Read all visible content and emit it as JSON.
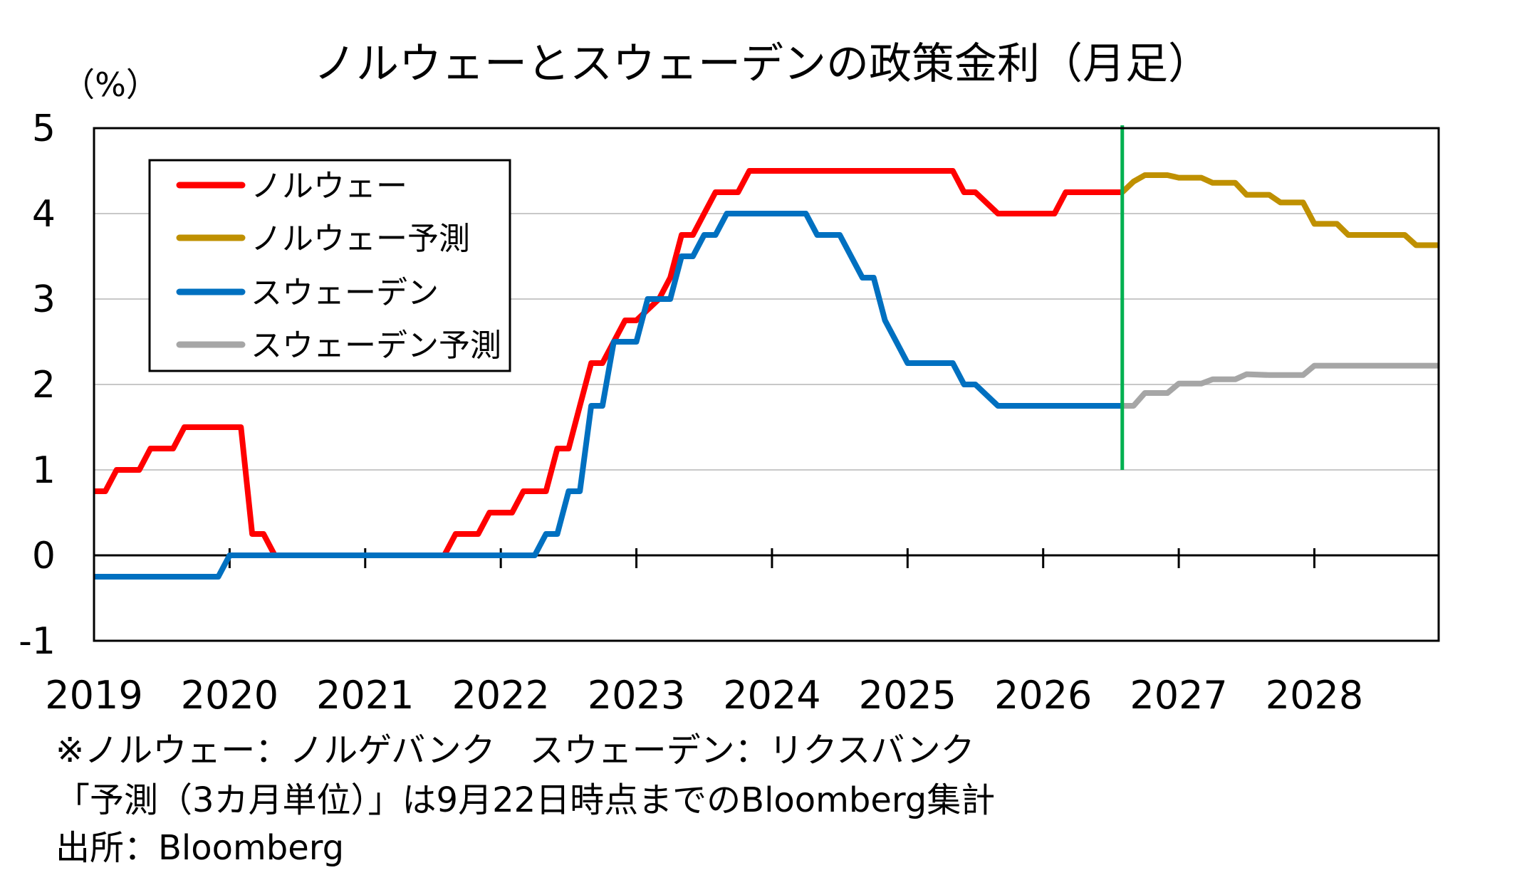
{
  "chart_data": {
    "type": "line",
    "title": "ノルウェーとスウェーデンの政策金利（月足）",
    "unit_label": "（%）",
    "ylim": [
      -1,
      5
    ],
    "yticks": [
      "5",
      "4",
      "3",
      "2",
      "1",
      "0",
      "-1"
    ],
    "x_start": "2019-01",
    "x_end": "2028-12",
    "xticks": [
      "2019",
      "2020",
      "2021",
      "2022",
      "2023",
      "2024",
      "2025",
      "2026",
      "2027",
      "2028"
    ],
    "grid": true,
    "legend_position": "top-left",
    "forecast_start": "2026-08",
    "colors": {
      "norway": "#ff0000",
      "norway_forecast": "#bf9000",
      "sweden": "#0070c0",
      "sweden_forecast": "#a6a6a6",
      "divider": "#00b050"
    },
    "series": [
      {
        "name": "ノルウェー",
        "points": [
          [
            "2019-01",
            0.75
          ],
          [
            "2019-02",
            0.75
          ],
          [
            "2019-03",
            1.0
          ],
          [
            "2019-05",
            1.0
          ],
          [
            "2019-06",
            1.25
          ],
          [
            "2019-08",
            1.25
          ],
          [
            "2019-09",
            1.5
          ],
          [
            "2020-02",
            1.5
          ],
          [
            "2020-03",
            0.25
          ],
          [
            "2020-04",
            0.25
          ],
          [
            "2020-05",
            0.0
          ],
          [
            "2021-08",
            0.0
          ],
          [
            "2021-09",
            0.25
          ],
          [
            "2021-11",
            0.25
          ],
          [
            "2021-12",
            0.5
          ],
          [
            "2022-02",
            0.5
          ],
          [
            "2022-03",
            0.75
          ],
          [
            "2022-05",
            0.75
          ],
          [
            "2022-06",
            1.25
          ],
          [
            "2022-07",
            1.25
          ],
          [
            "2022-08",
            1.75
          ],
          [
            "2022-09",
            2.25
          ],
          [
            "2022-10",
            2.25
          ],
          [
            "2022-11",
            2.5
          ],
          [
            "2022-12",
            2.75
          ],
          [
            "2023-01",
            2.75
          ],
          [
            "2023-03",
            3.0
          ],
          [
            "2023-04",
            3.25
          ],
          [
            "2023-05",
            3.75
          ],
          [
            "2023-06",
            3.75
          ],
          [
            "2023-07",
            4.0
          ],
          [
            "2023-08",
            4.25
          ],
          [
            "2023-10",
            4.25
          ],
          [
            "2023-11",
            4.5
          ],
          [
            "2025-05",
            4.5
          ],
          [
            "2025-06",
            4.25
          ],
          [
            "2025-07",
            4.25
          ],
          [
            "2025-09",
            4.0
          ],
          [
            "2026-02",
            4.0
          ],
          [
            "2026-03",
            4.25
          ],
          [
            "2026-08",
            4.25
          ]
        ]
      },
      {
        "name": "ノルウェー予測",
        "points": [
          [
            "2026-08",
            4.25
          ],
          [
            "2026-09",
            4.375
          ],
          [
            "2026-10",
            4.45
          ],
          [
            "2026-12",
            4.45
          ],
          [
            "2027-01",
            4.42
          ],
          [
            "2027-03",
            4.42
          ],
          [
            "2027-04",
            4.36
          ],
          [
            "2027-06",
            4.36
          ],
          [
            "2027-07",
            4.22
          ],
          [
            "2027-09",
            4.22
          ],
          [
            "2027-10",
            4.13
          ],
          [
            "2027-12",
            4.13
          ],
          [
            "2028-01",
            3.88
          ],
          [
            "2028-03",
            3.88
          ],
          [
            "2028-04",
            3.75
          ],
          [
            "2028-09",
            3.75
          ],
          [
            "2028-10",
            3.63
          ],
          [
            "2028-12",
            3.63
          ]
        ]
      },
      {
        "name": "スウェーデン",
        "points": [
          [
            "2019-01",
            -0.25
          ],
          [
            "2019-12",
            -0.25
          ],
          [
            "2020-01",
            0.0
          ],
          [
            "2022-04",
            0.0
          ],
          [
            "2022-05",
            0.25
          ],
          [
            "2022-06",
            0.25
          ],
          [
            "2022-07",
            0.75
          ],
          [
            "2022-08",
            0.75
          ],
          [
            "2022-09",
            1.75
          ],
          [
            "2022-10",
            1.75
          ],
          [
            "2022-11",
            2.5
          ],
          [
            "2023-01",
            2.5
          ],
          [
            "2023-02",
            3.0
          ],
          [
            "2023-04",
            3.0
          ],
          [
            "2023-05",
            3.5
          ],
          [
            "2023-06",
            3.5
          ],
          [
            "2023-07",
            3.75
          ],
          [
            "2023-08",
            3.75
          ],
          [
            "2023-09",
            4.0
          ],
          [
            "2024-04",
            4.0
          ],
          [
            "2024-05",
            3.75
          ],
          [
            "2024-07",
            3.75
          ],
          [
            "2024-08",
            3.5
          ],
          [
            "2024-09",
            3.25
          ],
          [
            "2024-10",
            3.25
          ],
          [
            "2024-11",
            2.75
          ],
          [
            "2024-12",
            2.5
          ],
          [
            "2025-01",
            2.25
          ],
          [
            "2025-05",
            2.25
          ],
          [
            "2025-06",
            2.0
          ],
          [
            "2025-07",
            2.0
          ],
          [
            "2025-09",
            1.75
          ],
          [
            "2026-08",
            1.75
          ]
        ]
      },
      {
        "name": "スウェーデン予測",
        "points": [
          [
            "2026-08",
            1.75
          ],
          [
            "2026-09",
            1.75
          ],
          [
            "2026-10",
            1.9
          ],
          [
            "2026-12",
            1.9
          ],
          [
            "2027-01",
            2.01
          ],
          [
            "2027-03",
            2.01
          ],
          [
            "2027-04",
            2.06
          ],
          [
            "2027-06",
            2.06
          ],
          [
            "2027-07",
            2.12
          ],
          [
            "2027-09",
            2.11
          ],
          [
            "2027-10",
            2.11
          ],
          [
            "2027-12",
            2.11
          ],
          [
            "2028-01",
            2.22
          ],
          [
            "2028-12",
            2.22
          ]
        ]
      }
    ]
  },
  "notes": [
    "※ノルウェー：ノルゲバンク　スウェーデン：リクスバンク",
    "「予測（3カ月単位）」は9月22日時点までのBloomberg集計",
    "出所：Bloomberg"
  ]
}
